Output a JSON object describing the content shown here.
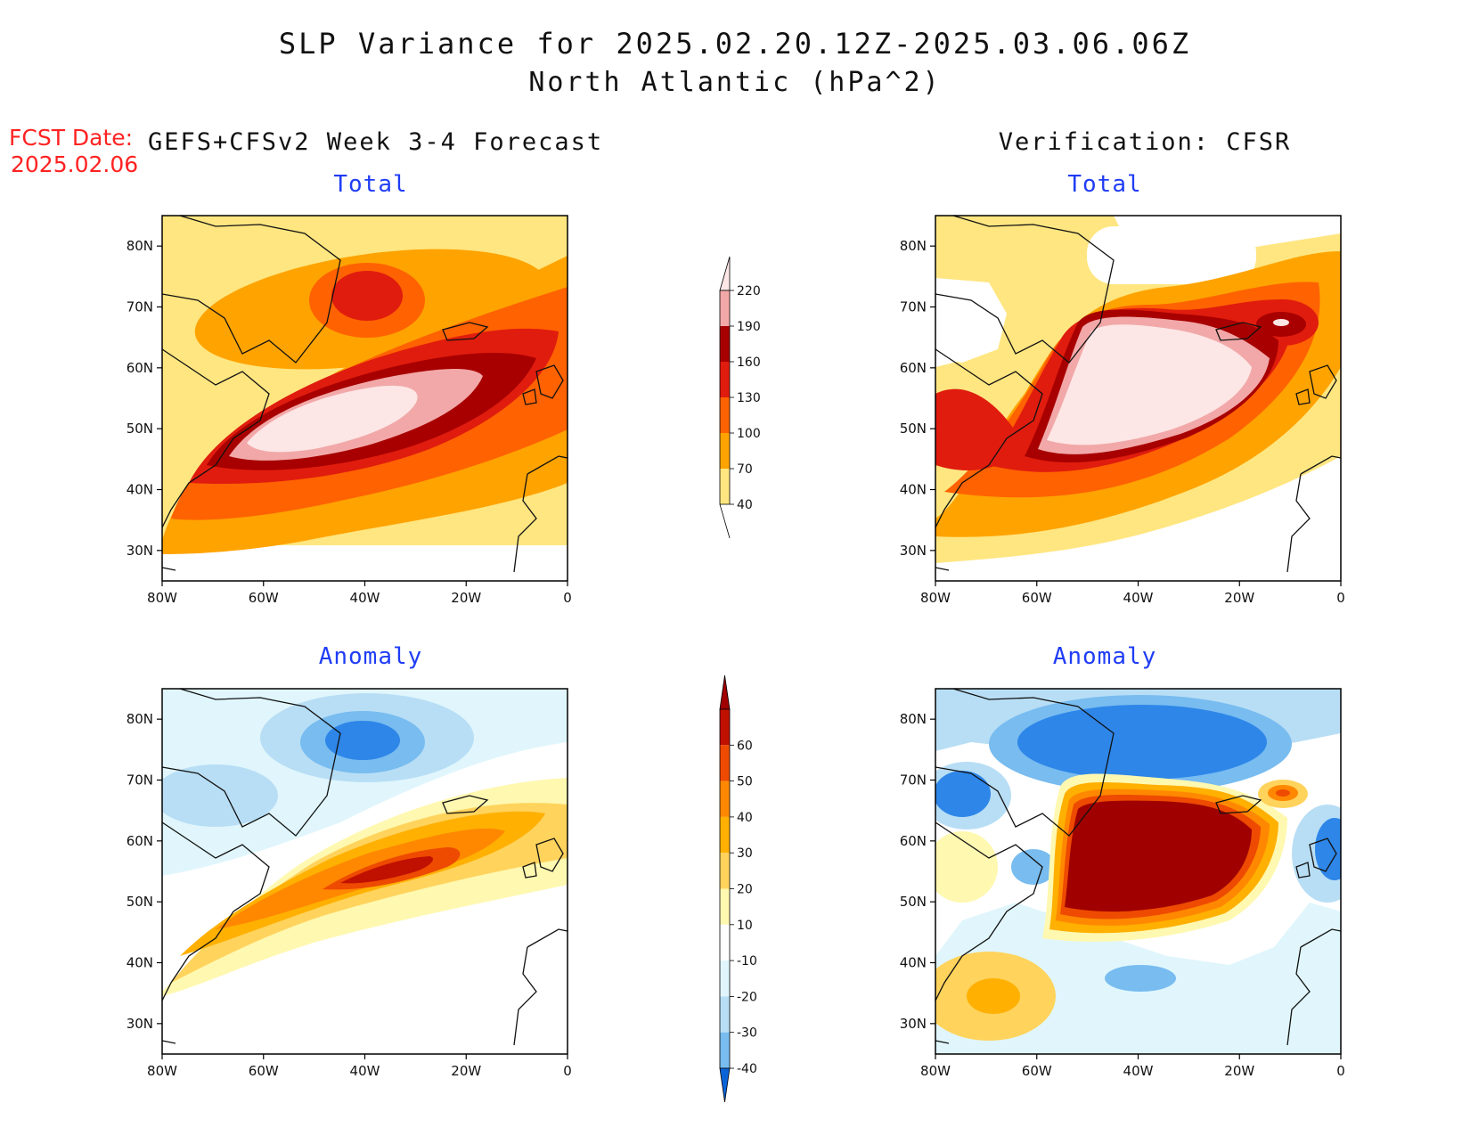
{
  "header": {
    "title_line1": "SLP Variance for 2025.02.20.12Z-2025.03.06.06Z",
    "title_line2": "North Atlantic (hPa^2)",
    "fcst_label": "FCST Date:",
    "fcst_date": "2025.02.06",
    "left_column_title": "GEFS+CFSv2 Week 3-4 Forecast",
    "right_column_title": "Verification: CFSR"
  },
  "panels": [
    {
      "id": "forecast-total",
      "subtitle": "Total"
    },
    {
      "id": "verification-total",
      "subtitle": "Total"
    },
    {
      "id": "forecast-anomaly",
      "subtitle": "Anomaly"
    },
    {
      "id": "verification-anomaly",
      "subtitle": "Anomaly"
    }
  ],
  "axes": {
    "lon_labels": [
      "80W",
      "60W",
      "40W",
      "20W",
      "0"
    ],
    "lat_labels": [
      "80N",
      "70N",
      "60N",
      "50N",
      "40N",
      "30N"
    ],
    "lon_range": [
      -80,
      0
    ],
    "lat_range": [
      25,
      85
    ]
  },
  "colorbars": {
    "total": {
      "levels": [
        "40",
        "70",
        "100",
        "130",
        "160",
        "190",
        "220"
      ],
      "colors": [
        "#ffe680",
        "#ffa300",
        "#ff6200",
        "#e01c0e",
        "#a80000",
        "#f2a8a8",
        "#fde6e6"
      ]
    },
    "anomaly": {
      "levels": [
        "-40",
        "-30",
        "-20",
        "-10",
        "10",
        "20",
        "30",
        "40",
        "50",
        "60"
      ],
      "colors": [
        "#0a64d8",
        "#2e86e8",
        "#78bcf0",
        "#b8def5",
        "#e0f6fc",
        "#ffffff",
        "#fff8b0",
        "#ffd35c",
        "#ffb000",
        "#ff8800",
        "#ee4a00",
        "#c01000",
        "#a00000"
      ]
    }
  },
  "chart_data": [
    {
      "type": "heatmap",
      "name": "forecast-total",
      "source": "GEFS+CFSv2 Week 3-4 Forecast",
      "units": "hPa^2",
      "features": [
        {
          "kind": "max",
          "lon": -45,
          "lat": 49,
          "value": 220,
          "note": "elongated storm-track maximum SW-NE across North Atlantic"
        },
        {
          "kind": "local_max",
          "lon": -35,
          "lat": 75,
          "value": 130
        }
      ]
    },
    {
      "type": "heatmap",
      "name": "verification-total",
      "source": "CFSR",
      "units": "hPa^2",
      "features": [
        {
          "kind": "max",
          "lon": -38,
          "lat": 55,
          "value": 220,
          "note": "large broad maximum from Newfoundland to Iceland"
        },
        {
          "kind": "local_max",
          "lon": -12,
          "lat": 67,
          "value": 220
        }
      ]
    },
    {
      "type": "heatmap",
      "name": "forecast-anomaly",
      "source": "GEFS+CFSv2 Week 3-4 Forecast",
      "units": "hPa^2",
      "features": [
        {
          "kind": "max",
          "lon": -38,
          "lat": 53,
          "value": 60
        },
        {
          "kind": "min",
          "lon": -38,
          "lat": 77,
          "value": -40
        }
      ]
    },
    {
      "type": "heatmap",
      "name": "verification-anomaly",
      "source": "CFSR",
      "units": "hPa^2",
      "features": [
        {
          "kind": "max",
          "lon": -38,
          "lat": 54,
          "value": 60,
          "note": "strong positive anomaly over central North Atlantic"
        },
        {
          "kind": "min",
          "lon": -40,
          "lat": 79,
          "value": -40,
          "note": "strong negative anomaly over Greenland"
        },
        {
          "kind": "local_min",
          "lon": -2,
          "lat": 57,
          "value": -40
        },
        {
          "kind": "local_min",
          "lon": -75,
          "lat": 68,
          "value": -40
        }
      ]
    }
  ]
}
